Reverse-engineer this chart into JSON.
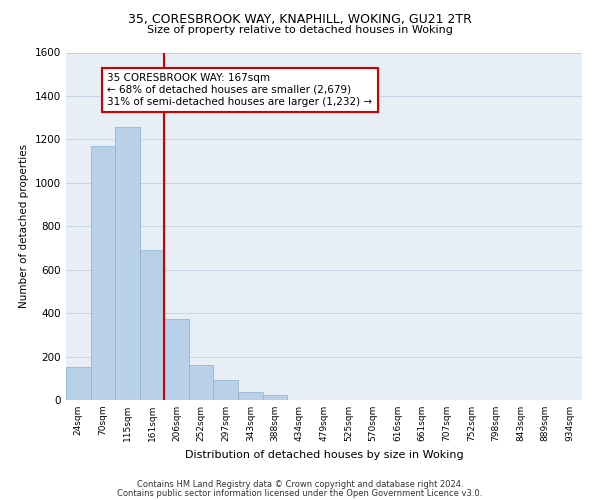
{
  "title1": "35, CORESBROOK WAY, KNAPHILL, WOKING, GU21 2TR",
  "title2": "Size of property relative to detached houses in Woking",
  "xlabel": "Distribution of detached houses by size in Woking",
  "ylabel": "Number of detached properties",
  "bar_labels": [
    "24sqm",
    "70sqm",
    "115sqm",
    "161sqm",
    "206sqm",
    "252sqm",
    "297sqm",
    "343sqm",
    "388sqm",
    "434sqm",
    "479sqm",
    "525sqm",
    "570sqm",
    "616sqm",
    "661sqm",
    "707sqm",
    "752sqm",
    "798sqm",
    "843sqm",
    "889sqm",
    "934sqm"
  ],
  "bar_values": [
    152,
    1170,
    1255,
    690,
    375,
    160,
    93,
    37,
    22,
    0,
    0,
    0,
    0,
    0,
    0,
    0,
    0,
    0,
    0,
    0,
    0
  ],
  "bar_color": "#b8d0e8",
  "bar_edge_color": "#8ab0cc",
  "vline_x": 3.5,
  "vline_color": "#cc0000",
  "ylim": [
    0,
    1600
  ],
  "yticks": [
    0,
    200,
    400,
    600,
    800,
    1000,
    1200,
    1400,
    1600
  ],
  "annotation_title": "35 CORESBROOK WAY: 167sqm",
  "annotation_line1": "← 68% of detached houses are smaller (2,679)",
  "annotation_line2": "31% of semi-detached houses are larger (1,232) →",
  "annotation_box_color": "#ffffff",
  "annotation_box_edge": "#cc0000",
  "footer1": "Contains HM Land Registry data © Crown copyright and database right 2024.",
  "footer2": "Contains public sector information licensed under the Open Government Licence v3.0.",
  "background_color": "#ffffff",
  "ax_facecolor": "#e8eef5",
  "grid_color": "#c8d4e4"
}
